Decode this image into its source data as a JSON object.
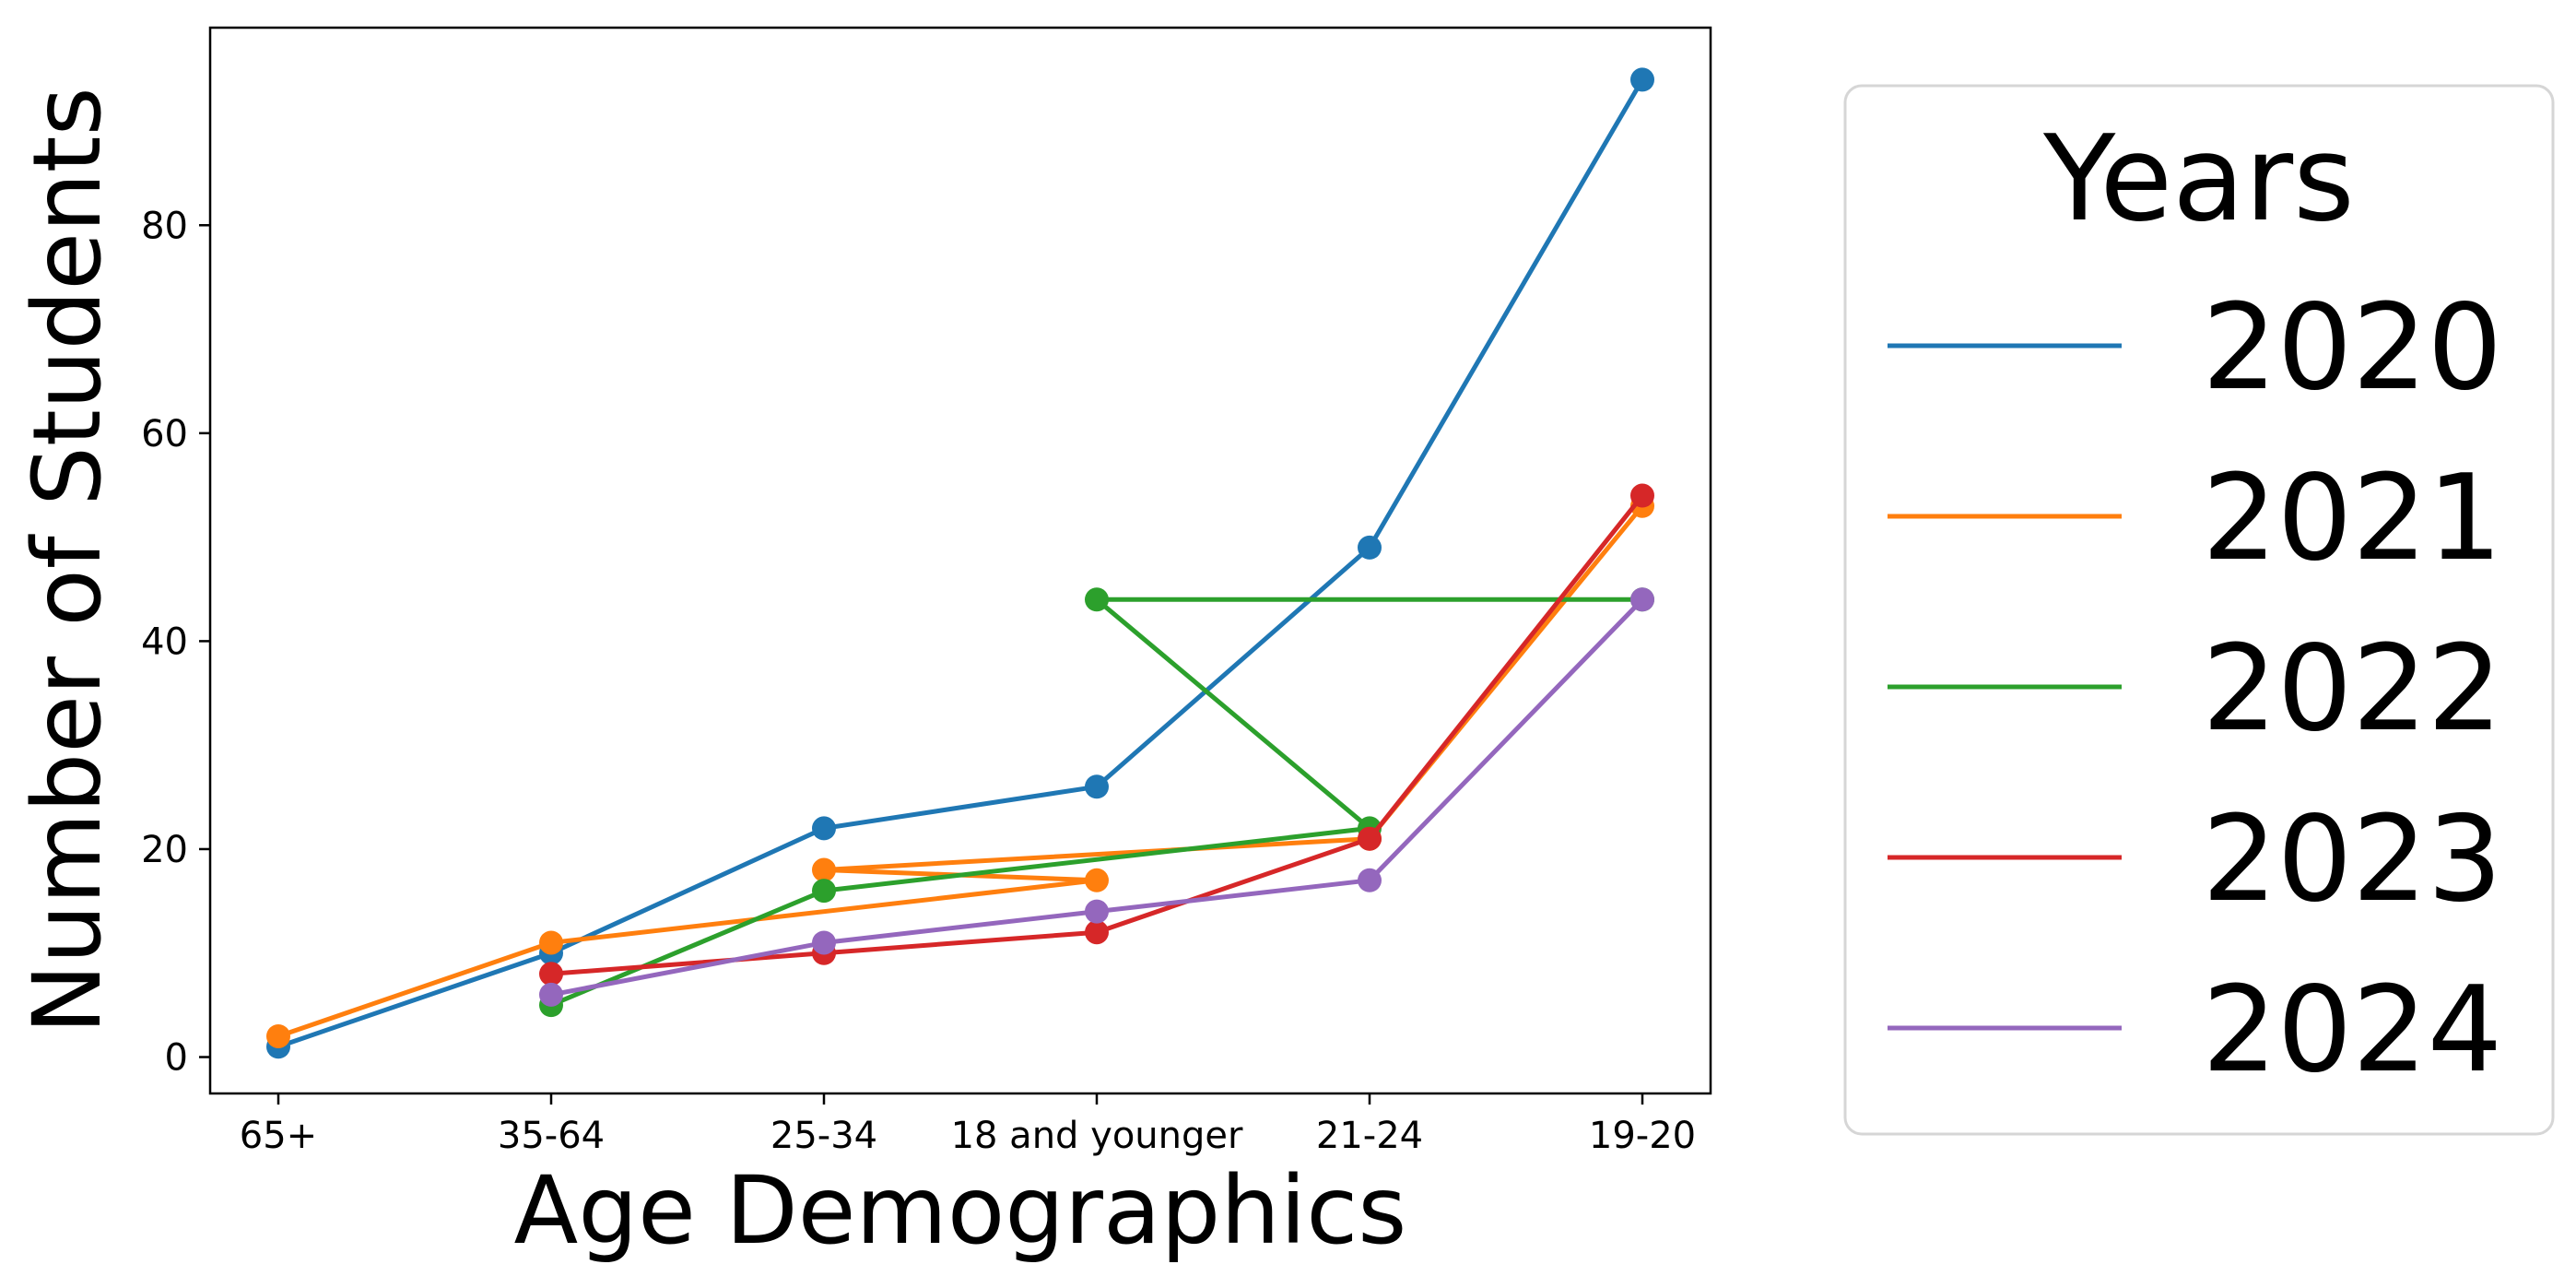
{
  "chart_data": {
    "type": "line",
    "categories": [
      "65+",
      "35-64",
      "25-34",
      "18 and younger",
      "21-24",
      "19-20"
    ],
    "xlabel": "Age Demographics",
    "ylabel": "Number of Students",
    "ylim": [
      -3.5,
      99
    ],
    "yticks": [
      0,
      20,
      40,
      60,
      80
    ],
    "grid": false,
    "legend": {
      "title": "Years",
      "placement": "outside-right"
    },
    "series": [
      {
        "name": "2020",
        "color": "#1f77b4",
        "points": [
          [
            "65+",
            1
          ],
          [
            "35-64",
            10
          ],
          [
            "25-34",
            22
          ],
          [
            "18 and younger",
            26
          ],
          [
            "21-24",
            49
          ],
          [
            "19-20",
            94
          ]
        ]
      },
      {
        "name": "2021",
        "color": "#ff7f0e",
        "points": [
          [
            "65+",
            2
          ],
          [
            "35-64",
            11
          ],
          [
            "18 and younger",
            17
          ],
          [
            "25-34",
            18
          ],
          [
            "21-24",
            21
          ],
          [
            "19-20",
            53
          ]
        ]
      },
      {
        "name": "2022",
        "color": "#2ca02c",
        "points": [
          [
            "35-64",
            5
          ],
          [
            "25-34",
            16
          ],
          [
            "21-24",
            22
          ],
          [
            "18 and younger",
            44
          ],
          [
            "19-20",
            44
          ]
        ]
      },
      {
        "name": "2023",
        "color": "#d62728",
        "points": [
          [
            "35-64",
            8
          ],
          [
            "25-34",
            10
          ],
          [
            "18 and younger",
            12
          ],
          [
            "21-24",
            21
          ],
          [
            "19-20",
            54
          ]
        ]
      },
      {
        "name": "2024",
        "color": "#9467bd",
        "points": [
          [
            "35-64",
            6
          ],
          [
            "25-34",
            11
          ],
          [
            "18 and younger",
            14
          ],
          [
            "21-24",
            17
          ],
          [
            "19-20",
            44
          ]
        ]
      }
    ]
  }
}
